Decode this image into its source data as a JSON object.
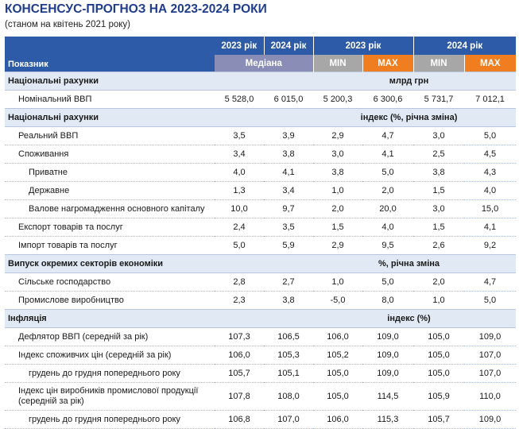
{
  "title": "КОНСЕНСУС-ПРОГНОЗ НА 2023-2024 РОКИ",
  "subtitle": "(станом на квітень 2021 року)",
  "header": {
    "indicator": "Показник",
    "y2023": "2023 рік",
    "y2024": "2024 рік",
    "median": "Медіана",
    "min": "MIN",
    "max": "MAX"
  },
  "sections": [
    {
      "title": "Національні рахунки",
      "unit": "млрд грн",
      "rows": [
        {
          "label": "Номінальний ВВП",
          "v": [
            "5 528,0",
            "6 015,0",
            "5 200,3",
            "6 300,6",
            "5 731,7",
            "7 012,1"
          ]
        }
      ]
    },
    {
      "title": "Національні рахунки",
      "unit": "індекс (%, річна зміна)",
      "rows": [
        {
          "label": "Реальний ВВП",
          "v": [
            "3,5",
            "3,9",
            "2,9",
            "4,7",
            "3,0",
            "5,0"
          ]
        },
        {
          "label": "Споживання",
          "v": [
            "3,4",
            "3,8",
            "3,0",
            "4,1",
            "2,5",
            "4,5"
          ]
        },
        {
          "label": "Приватне",
          "v": [
            "4,0",
            "4,1",
            "3,8",
            "5,0",
            "3,8",
            "4,3"
          ]
        },
        {
          "label": "Державне",
          "v": [
            "1,3",
            "3,4",
            "1,0",
            "2,0",
            "1,5",
            "4,0"
          ]
        },
        {
          "label": "Валове нагромадження основного капіталу",
          "v": [
            "10,0",
            "9,7",
            "2,0",
            "20,0",
            "3,0",
            "15,0"
          ]
        },
        {
          "label": "Експорт товарів та послуг",
          "v": [
            "2,4",
            "3,5",
            "1,5",
            "4,0",
            "1,5",
            "4,1"
          ]
        },
        {
          "label": "Імпорт товарів та послуг",
          "v": [
            "5,0",
            "5,9",
            "2,9",
            "9,5",
            "2,6",
            "9,2"
          ]
        }
      ]
    },
    {
      "title": "Випуск окремих секторів економіки",
      "unit": "%, річна зміна",
      "rows": [
        {
          "label": "Сільське господарство",
          "v": [
            "2,8",
            "2,7",
            "1,0",
            "5,0",
            "2,0",
            "4,7"
          ]
        },
        {
          "label": "Промислове виробництво",
          "v": [
            "2,3",
            "3,8",
            "-5,0",
            "8,0",
            "1,0",
            "5,0"
          ]
        }
      ]
    },
    {
      "title": "Інфляція",
      "unit": "індекс (%)",
      "rows": [
        {
          "label": "Дефлятор ВВП (середній за рік)",
          "v": [
            "107,3",
            "106,5",
            "106,0",
            "109,0",
            "105,0",
            "109,0"
          ]
        },
        {
          "label": "Індекс споживчих цін (середній за рік)",
          "v": [
            "106,0",
            "105,3",
            "105,2",
            "109,0",
            "105,0",
            "107,0"
          ]
        },
        {
          "label": "грудень до грудня попереднього року",
          "v": [
            "105,7",
            "105,1",
            "105,0",
            "109,0",
            "105,0",
            "107,0"
          ]
        },
        {
          "label": "Індекс цін виробників промислової продукції (середній за рік)",
          "v": [
            "107,8",
            "108,0",
            "105,0",
            "114,5",
            "105,9",
            "110,0"
          ]
        },
        {
          "label": "грудень до грудня попереднього року",
          "v": [
            "106,8",
            "107,0",
            "106,0",
            "115,3",
            "105,7",
            "109,0"
          ]
        }
      ]
    }
  ]
}
